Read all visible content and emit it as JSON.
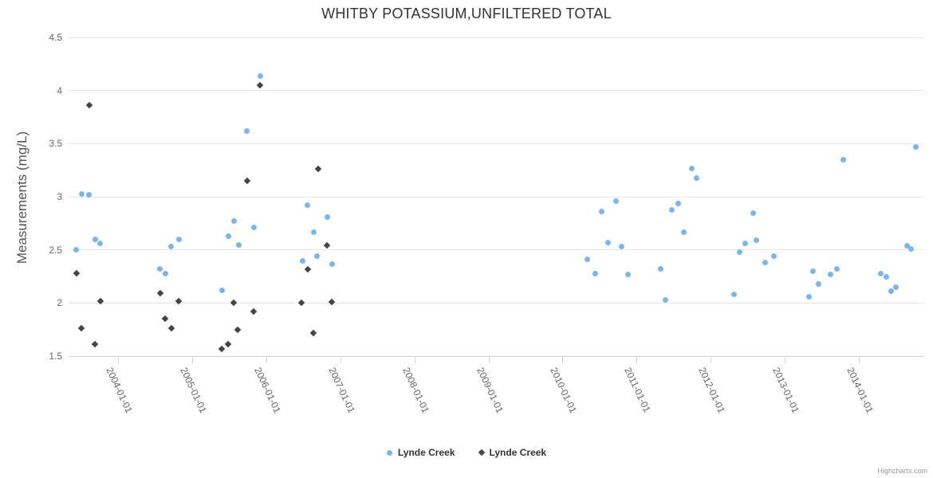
{
  "header": {
    "title": "WHITBY POTASSIUM,UNFILTERED TOTAL"
  },
  "y_axis": {
    "title": "Measurements (mg/L)",
    "tick_labels": [
      "4.5",
      "4",
      "3.5",
      "3",
      "2.5",
      "2",
      "1.5"
    ],
    "tick_values": [
      4.5,
      4,
      3.5,
      3,
      2.5,
      2,
      1.5
    ],
    "min": 1.5,
    "max": 4.5
  },
  "x_axis": {
    "tick_labels": [
      "2004-01-01",
      "2005-01-01",
      "2006-01-01",
      "2007-01-01",
      "2008-01-01",
      "2009-01-01",
      "2010-01-01",
      "2011-01-01",
      "2012-01-01",
      "2013-01-01",
      "2014-01-01"
    ],
    "tick_years": [
      2004,
      2005,
      2006,
      2007,
      2008,
      2009,
      2010,
      2011,
      2012,
      2013,
      2014
    ]
  },
  "legend": {
    "items": [
      {
        "label": "Lynde Creek",
        "marker": "circle",
        "color": "#7cb5ec"
      },
      {
        "label": "Lynde Creek",
        "marker": "diamond",
        "color": "#434348"
      }
    ]
  },
  "credit": {
    "label": "Highcharts.com"
  },
  "colors": {
    "series_blue": "#7cb5ec",
    "series_dark": "#434348",
    "gridline": "#e6e6e6",
    "axis_line": "#ccd6eb",
    "tick_label_text": "#666666",
    "title_text": "#333333",
    "legend_text": "#333333",
    "credit_text": "#999999"
  },
  "chart_data": {
    "type": "scatter",
    "title": "WHITBY POTASSIUM,UNFILTERED TOTAL",
    "xlabel": "",
    "ylabel": "Measurements (mg/L)",
    "ylim": [
      1.5,
      4.5
    ],
    "x_unit": "decimal_year",
    "grid": "horizontal-only",
    "legend_position": "bottom",
    "series": [
      {
        "name": "Lynde Creek",
        "marker": "circle",
        "color": "#7cb5ec",
        "points": [
          [
            2003.44,
            2.5
          ],
          [
            2003.51,
            3.03
          ],
          [
            2003.61,
            3.02
          ],
          [
            2003.69,
            2.6
          ],
          [
            2003.76,
            2.56
          ],
          [
            2004.57,
            2.32
          ],
          [
            2004.64,
            2.28
          ],
          [
            2004.72,
            2.53
          ],
          [
            2004.82,
            2.6
          ],
          [
            2005.41,
            2.12
          ],
          [
            2005.49,
            2.63
          ],
          [
            2005.57,
            2.77
          ],
          [
            2005.63,
            2.55
          ],
          [
            2005.74,
            3.62
          ],
          [
            2005.83,
            2.71
          ],
          [
            2005.92,
            4.14
          ],
          [
            2006.49,
            2.4
          ],
          [
            2006.56,
            2.92
          ],
          [
            2006.64,
            2.67
          ],
          [
            2006.69,
            2.44
          ],
          [
            2006.83,
            2.81
          ],
          [
            2006.89,
            2.37
          ],
          [
            2010.34,
            2.41
          ],
          [
            2010.44,
            2.28
          ],
          [
            2010.53,
            2.86
          ],
          [
            2010.61,
            2.57
          ],
          [
            2010.72,
            2.96
          ],
          [
            2010.8,
            2.53
          ],
          [
            2010.88,
            2.27
          ],
          [
            2011.32,
            2.32
          ],
          [
            2011.39,
            2.03
          ],
          [
            2011.48,
            2.88
          ],
          [
            2011.56,
            2.94
          ],
          [
            2011.64,
            2.67
          ],
          [
            2011.74,
            3.27
          ],
          [
            2011.81,
            3.18
          ],
          [
            2012.32,
            2.08
          ],
          [
            2012.39,
            2.48
          ],
          [
            2012.47,
            2.56
          ],
          [
            2012.57,
            2.85
          ],
          [
            2012.62,
            2.59
          ],
          [
            2012.74,
            2.38
          ],
          [
            2012.85,
            2.44
          ],
          [
            2013.33,
            2.06
          ],
          [
            2013.38,
            2.3
          ],
          [
            2013.46,
            2.18
          ],
          [
            2013.62,
            2.27
          ],
          [
            2013.7,
            2.32
          ],
          [
            2013.79,
            3.35
          ],
          [
            2014.3,
            2.28
          ],
          [
            2014.37,
            2.25
          ],
          [
            2014.44,
            2.11
          ],
          [
            2014.5,
            2.15
          ],
          [
            2014.65,
            2.54
          ],
          [
            2014.7,
            2.51
          ],
          [
            2014.77,
            3.47
          ]
        ]
      },
      {
        "name": "Lynde Creek",
        "marker": "diamond",
        "color": "#434348",
        "points": [
          [
            2003.44,
            2.28
          ],
          [
            2003.51,
            1.76
          ],
          [
            2003.61,
            3.86
          ],
          [
            2003.69,
            1.61
          ],
          [
            2003.76,
            2.02
          ],
          [
            2004.57,
            2.09
          ],
          [
            2004.64,
            1.85
          ],
          [
            2004.72,
            1.76
          ],
          [
            2004.82,
            2.02
          ],
          [
            2005.4,
            1.57
          ],
          [
            2005.49,
            1.61
          ],
          [
            2005.56,
            2.0
          ],
          [
            2005.62,
            1.75
          ],
          [
            2005.74,
            3.15
          ],
          [
            2005.83,
            1.92
          ],
          [
            2005.92,
            4.05
          ],
          [
            2006.48,
            2.0
          ],
          [
            2006.56,
            2.32
          ],
          [
            2006.64,
            1.72
          ],
          [
            2006.7,
            3.26
          ],
          [
            2006.82,
            2.54
          ],
          [
            2006.89,
            2.01
          ]
        ]
      }
    ]
  }
}
